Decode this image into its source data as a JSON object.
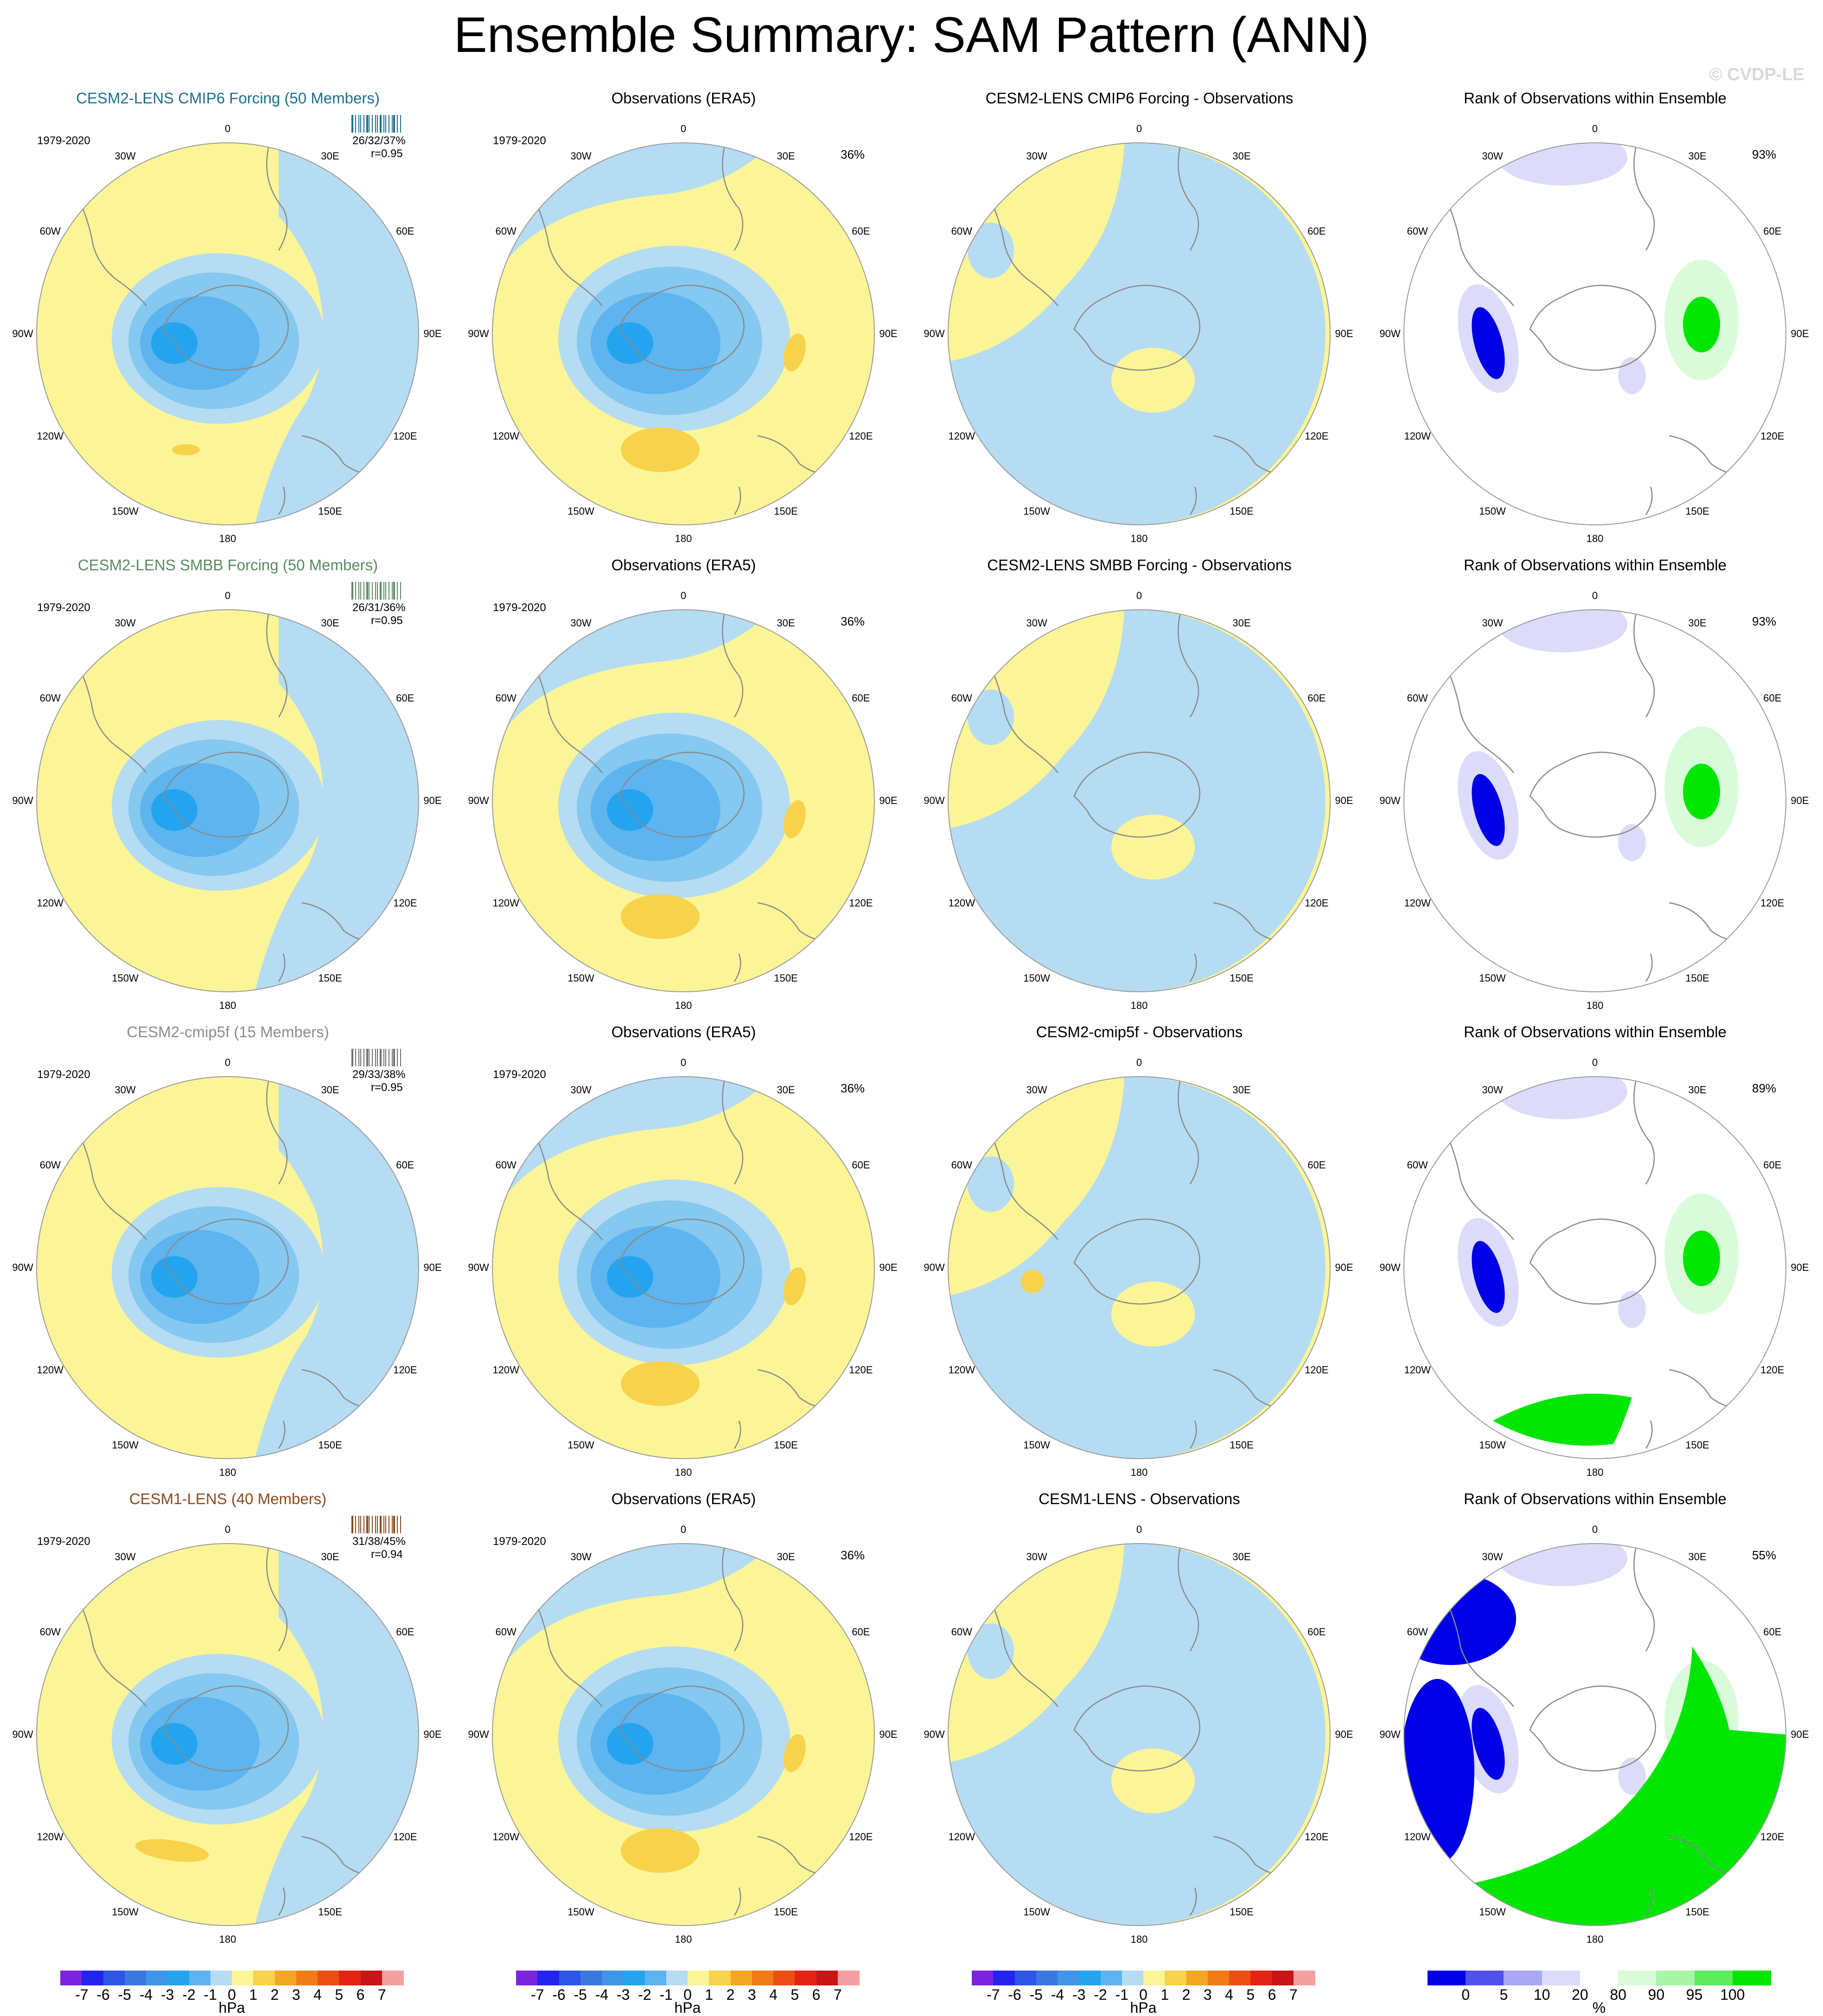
{
  "title": "Ensemble Summary: SAM Pattern (ANN)",
  "watermark": "© CVDP-LE",
  "colors": {
    "ocean_pos": "#fbf597",
    "pos2": "#f7d24a",
    "neg1": "#b5dcf2",
    "neg2": "#85c8f0",
    "neg3": "#5db4ee",
    "neg4": "#24a4ee",
    "rank_blue": "#0000e6",
    "rank_green": "#00e600",
    "rank_lightblue": "#dcdcfa",
    "rank_lightgreen": "#d9fbd9"
  },
  "lon_labels": [
    "0",
    "30E",
    "60E",
    "90E",
    "120E",
    "150E",
    "180",
    "150W",
    "120W",
    "90W",
    "60W",
    "30W"
  ],
  "period": "1979-2020",
  "rows": [
    {
      "model": {
        "title": "CESM2-LENS CMIP6 Forcing (50 Members)",
        "title_color": "#1d6f8c",
        "stats": "26/32/37%",
        "r": "r=0.95",
        "ticks_color": "#1d6f8c"
      },
      "obs": {
        "title": "Observations (ERA5)",
        "pct": "36%"
      },
      "diff": {
        "title": "CESM2-LENS CMIP6 Forcing - Observations"
      },
      "rank": {
        "title": "Rank of Observations within Ensemble",
        "pct": "93%"
      }
    },
    {
      "model": {
        "title": "CESM2-LENS SMBB Forcing (50 Members)",
        "title_color": "#5a8a62",
        "stats": "26/31/36%",
        "r": "r=0.95",
        "ticks_color": "#5a8a62"
      },
      "obs": {
        "title": "Observations (ERA5)",
        "pct": "36%"
      },
      "diff": {
        "title": "CESM2-LENS SMBB Forcing - Observations"
      },
      "rank": {
        "title": "Rank of Observations within Ensemble",
        "pct": "93%"
      }
    },
    {
      "model": {
        "title": "CESM2-cmip5f (15 Members)",
        "title_color": "#8c8c8c",
        "stats": "29/33/38%",
        "r": "r=0.95",
        "ticks_color": "#707070"
      },
      "obs": {
        "title": "Observations (ERA5)",
        "pct": "36%"
      },
      "diff": {
        "title": "CESM2-cmip5f - Observations"
      },
      "rank": {
        "title": "Rank of Observations within Ensemble",
        "pct": "89%"
      }
    },
    {
      "model": {
        "title": "CESM1-LENS (40 Members)",
        "title_color": "#8a4a1e",
        "stats": "31/38/45%",
        "r": "r=0.94",
        "ticks_color": "#8a4a1e"
      },
      "obs": {
        "title": "Observations (ERA5)",
        "pct": "36%"
      },
      "diff": {
        "title": "CESM1-LENS - Observations"
      },
      "rank": {
        "title": "Rank of Observations within Ensemble",
        "pct": "55%"
      }
    }
  ],
  "colorbar_hpa": {
    "unit": "hPa",
    "labels": [
      "-7",
      "-6",
      "-5",
      "-4",
      "-3",
      "-2",
      "-1",
      "0",
      "1",
      "2",
      "3",
      "4",
      "5",
      "6",
      "7"
    ],
    "colors": [
      "#7b24e0",
      "#2424ee",
      "#2e55e6",
      "#3a78e0",
      "#3f95e6",
      "#24a4ee",
      "#5db4ee",
      "#b5dcf2",
      "#fbf597",
      "#f7d24a",
      "#f5a623",
      "#ef7c17",
      "#ec4e14",
      "#e32314",
      "#c81414",
      "#f5a0a0"
    ]
  },
  "colorbar_pct": {
    "unit": "%",
    "labels": [
      "0",
      "5",
      "10",
      "20",
      "80",
      "90",
      "95",
      "100"
    ],
    "colors": [
      "#0000e6",
      "#5050ec",
      "#a8a8f4",
      "#dcdcfa",
      "#ffffff",
      "#d9fbd9",
      "#a8f5a8",
      "#5cec5c",
      "#00e600"
    ]
  }
}
